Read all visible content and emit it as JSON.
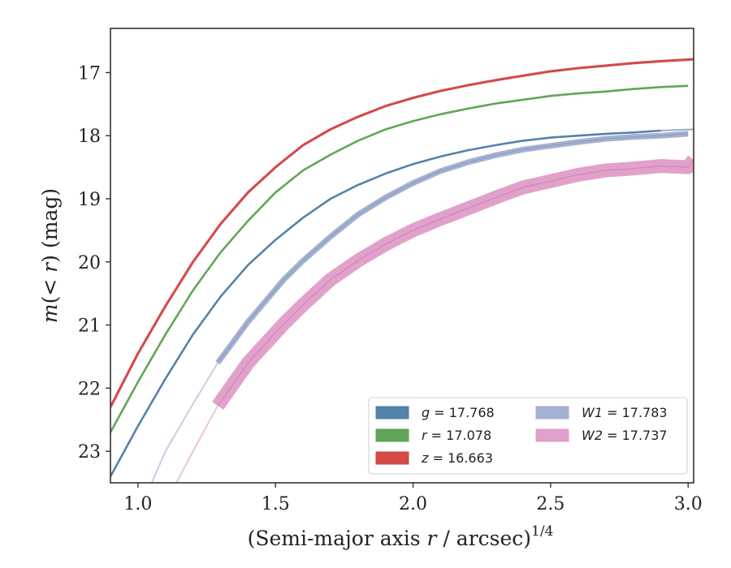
{
  "chart_data": {
    "type": "line",
    "xlabel": "(Semi-major axis r / arcsec)1/4",
    "xlabel_parts": {
      "base": "(Semi-major axis ",
      "var": "r",
      "rest": " / arcsec)",
      "sup": "1/4"
    },
    "ylabel": "m(< r) (mag)",
    "ylabel_parts": {
      "m": "m",
      "open": "(",
      "lt": "< ",
      "r": "r",
      "close": ") (mag)"
    },
    "xlim": [
      0.9,
      3.02
    ],
    "ylim": [
      23.5,
      16.3
    ],
    "y_inverted": true,
    "xticks": [
      "1.0",
      "1.5",
      "2.0",
      "2.5",
      "3.0"
    ],
    "xtick_values": [
      1.0,
      1.5,
      2.0,
      2.5,
      3.0
    ],
    "yticks": [
      "17",
      "18",
      "19",
      "20",
      "21",
      "22",
      "23"
    ],
    "ytick_values": [
      17,
      18,
      19,
      20,
      21,
      22,
      23
    ],
    "grid": false,
    "legend_placement": "lower-right",
    "series": [
      {
        "name": "g = 17.768",
        "legend_label": {
          "var": "g",
          "eq": " = 17.768"
        },
        "color": "#4c7ba5",
        "band_width": 0.03,
        "x": [
          0.9,
          1.0,
          1.1,
          1.2,
          1.3,
          1.4,
          1.5,
          1.6,
          1.7,
          1.8,
          1.9,
          2.0,
          2.1,
          2.2,
          2.3,
          2.4,
          2.5,
          2.6,
          2.7,
          2.8,
          2.9
        ],
        "y": [
          23.4,
          22.6,
          21.85,
          21.15,
          20.55,
          20.05,
          19.65,
          19.3,
          19.0,
          18.78,
          18.6,
          18.45,
          18.33,
          18.23,
          18.15,
          18.08,
          18.03,
          18.0,
          17.97,
          17.95,
          17.92
        ],
        "faint_x": [
          2.9,
          3.02
        ],
        "faint_y": [
          17.92,
          17.9
        ]
      },
      {
        "name": "r = 17.078",
        "legend_label": {
          "var": "r",
          "eq": " = 17.078"
        },
        "color": "#59a14f",
        "band_width": 0.03,
        "x": [
          0.9,
          1.0,
          1.1,
          1.2,
          1.3,
          1.4,
          1.5,
          1.6,
          1.7,
          1.8,
          1.9,
          2.0,
          2.1,
          2.2,
          2.3,
          2.4,
          2.5,
          2.6,
          2.7,
          2.8,
          2.9,
          3.0
        ],
        "y": [
          22.7,
          21.9,
          21.15,
          20.45,
          19.85,
          19.35,
          18.9,
          18.55,
          18.3,
          18.08,
          17.9,
          17.77,
          17.66,
          17.57,
          17.49,
          17.43,
          17.37,
          17.33,
          17.3,
          17.26,
          17.23,
          17.21
        ]
      },
      {
        "name": "z = 16.663",
        "legend_label": {
          "var": "z",
          "eq": " = 16.663"
        },
        "color": "#d1403f",
        "band_width": 0.04,
        "x": [
          0.9,
          1.0,
          1.1,
          1.2,
          1.3,
          1.4,
          1.5,
          1.6,
          1.7,
          1.8,
          1.9,
          2.0,
          2.1,
          2.2,
          2.3,
          2.4,
          2.5,
          2.6,
          2.7,
          2.8,
          2.9,
          3.02
        ],
        "y": [
          22.3,
          21.45,
          20.7,
          20.0,
          19.4,
          18.9,
          18.5,
          18.15,
          17.9,
          17.7,
          17.53,
          17.4,
          17.29,
          17.2,
          17.12,
          17.05,
          16.98,
          16.93,
          16.89,
          16.85,
          16.82,
          16.79
        ]
      },
      {
        "name": "W1 = 17.783",
        "legend_label": {
          "var": "W1",
          "eq": " = 17.783"
        },
        "color": "#a0add0",
        "band_width": 0.09,
        "faint_x": [
          1.05,
          1.1,
          1.2,
          1.29
        ],
        "faint_y": [
          23.5,
          23.0,
          22.25,
          21.6
        ],
        "x": [
          1.29,
          1.4,
          1.53,
          1.6,
          1.7,
          1.8,
          1.9,
          2.0,
          2.1,
          2.2,
          2.3,
          2.4,
          2.5,
          2.6,
          2.7,
          2.8,
          2.9,
          3.0
        ],
        "y": [
          21.6,
          20.95,
          20.28,
          19.98,
          19.6,
          19.25,
          18.98,
          18.75,
          18.56,
          18.42,
          18.31,
          18.22,
          18.16,
          18.1,
          18.05,
          18.02,
          18.0,
          17.97
        ]
      },
      {
        "name": "W2 = 17.737",
        "legend_label": {
          "var": "W2",
          "eq": " = 17.737"
        },
        "color": "#e09cc7",
        "band_width": 0.22,
        "faint_x": [
          1.14,
          1.2,
          1.25,
          1.29
        ],
        "faint_y": [
          23.5,
          23.0,
          22.6,
          22.28
        ],
        "x": [
          1.29,
          1.4,
          1.53,
          1.6,
          1.7,
          1.8,
          1.9,
          2.0,
          2.1,
          2.2,
          2.3,
          2.4,
          2.5,
          2.6,
          2.7,
          2.8,
          2.9,
          3.0,
          3.02
        ],
        "y": [
          22.28,
          21.6,
          20.98,
          20.68,
          20.28,
          19.98,
          19.72,
          19.5,
          19.32,
          19.15,
          18.98,
          18.82,
          18.72,
          18.62,
          18.55,
          18.52,
          18.48,
          18.5,
          18.38
        ]
      }
    ]
  }
}
